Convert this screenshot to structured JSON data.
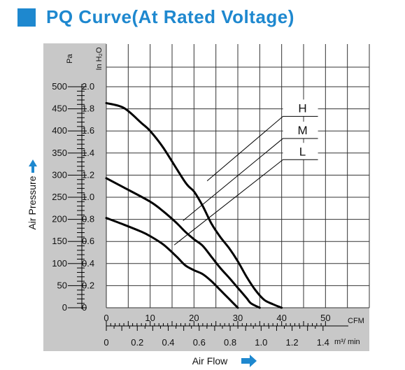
{
  "title": "PQ Curve(At Rated Voltage)",
  "colors": {
    "accent": "#1e88cf",
    "plot_background": "#c8c8c8",
    "curve": "#000000"
  },
  "icons": {
    "title_marker": "blue-square-icon",
    "y_arrow": "arrow-up-icon",
    "x_arrow": "arrow-right-icon"
  },
  "chart_data": {
    "type": "line",
    "title": "PQ Curve(At Rated Voltage)",
    "xlabel": "Air Flow",
    "ylabel": "Air Pressure",
    "x_units": {
      "primary": "CFM",
      "secondary": "m³/ min"
    },
    "y_units": {
      "primary": "Pa",
      "secondary": "In H₂O"
    },
    "xlim": [
      0,
      60
    ],
    "ylim": [
      0,
      500
    ],
    "x_ticks_cfm": [
      "0",
      "10",
      "20",
      "30",
      "40",
      "50"
    ],
    "x_tick_values_cfm": [
      0,
      10,
      20,
      30,
      40,
      50
    ],
    "x_ticks_m3min": [
      "0",
      "0.2",
      "0.4",
      "0.6",
      "0.8",
      "1.0",
      "1.2",
      "1.4"
    ],
    "x_tick_values_m3min": [
      0,
      0.2,
      0.4,
      0.6,
      0.8,
      1.0,
      1.2,
      1.4
    ],
    "y_ticks_pa": [
      "0",
      "50",
      "100",
      "150",
      "200",
      "250",
      "300",
      "350",
      "400",
      "450",
      "500"
    ],
    "y_tick_values_pa": [
      0,
      50,
      100,
      150,
      200,
      250,
      300,
      350,
      400,
      450,
      500
    ],
    "y_ticks_inh2o": [
      "0",
      "0.2",
      "0.4",
      "0.6",
      "0.8",
      "1.0",
      "1.2",
      "1.4",
      "1.6",
      "1.8",
      "2.0"
    ],
    "y_tick_values_inh2o": [
      0,
      0.2,
      0.4,
      0.6,
      0.8,
      1.0,
      1.2,
      1.4,
      1.6,
      1.8,
      2.0
    ],
    "grid": true,
    "legend": "callout labels with leader lines, upper right",
    "series": [
      {
        "name": "H",
        "x": [
          0,
          4,
          8,
          10,
          13,
          18,
          20,
          22,
          24,
          26,
          28,
          30,
          32,
          34,
          36,
          38,
          40
        ],
        "y": [
          463,
          452,
          418,
          400,
          362,
          284,
          263,
          230,
          190,
          160,
          135,
          105,
          70,
          40,
          18,
          8,
          0
        ]
      },
      {
        "name": "M",
        "x": [
          0,
          4,
          10,
          13,
          16,
          18,
          20,
          22,
          24,
          26,
          28,
          30,
          32,
          33,
          35
        ],
        "y": [
          293,
          272,
          240,
          218,
          192,
          172,
          155,
          140,
          115,
          90,
          68,
          45,
          22,
          10,
          0
        ]
      },
      {
        "name": "L",
        "x": [
          0,
          4,
          8,
          10,
          13,
          16,
          18,
          20,
          22,
          24,
          26,
          28,
          30
        ],
        "y": [
          203,
          188,
          172,
          162,
          143,
          116,
          96,
          85,
          76,
          60,
          40,
          20,
          0
        ]
      }
    ],
    "callouts": [
      {
        "series": "H",
        "label": "H",
        "box_x": 40.3,
        "box_y": 433,
        "point_x": 23,
        "point_y": 287
      },
      {
        "series": "M",
        "label": "M",
        "box_x": 40.3,
        "box_y": 383,
        "point_x": 17.5,
        "point_y": 197
      },
      {
        "series": "L",
        "label": "L",
        "box_x": 40.3,
        "box_y": 335,
        "point_x": 15.5,
        "point_y": 142
      }
    ]
  }
}
